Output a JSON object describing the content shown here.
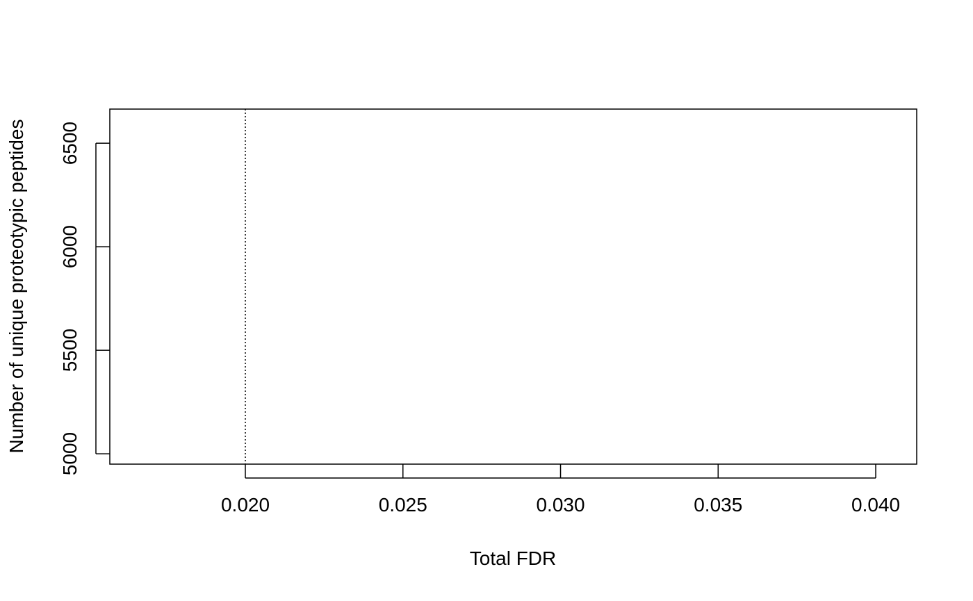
{
  "chart_data": {
    "type": "line",
    "title": "",
    "xlabel": "Total FDR",
    "ylabel": "Number of unique proteotypic peptides",
    "xlim": [
      0.0157,
      0.0413
    ],
    "ylim": [
      4950,
      6665
    ],
    "x_ticks": [
      {
        "value": 0.02,
        "label": "0.020"
      },
      {
        "value": 0.025,
        "label": "0.025"
      },
      {
        "value": 0.03,
        "label": "0.030"
      },
      {
        "value": 0.035,
        "label": "0.035"
      },
      {
        "value": 0.04,
        "label": "0.040"
      }
    ],
    "y_ticks": [
      {
        "value": 5000,
        "label": "5000"
      },
      {
        "value": 5500,
        "label": "5500"
      },
      {
        "value": 6000,
        "label": "6000"
      },
      {
        "value": 6500,
        "label": "6500"
      }
    ],
    "series": [],
    "reference_lines": [
      {
        "orientation": "vertical",
        "x": 0.02,
        "style": "dotted",
        "color": "#000000"
      }
    ],
    "grid": false,
    "legend": "none"
  }
}
